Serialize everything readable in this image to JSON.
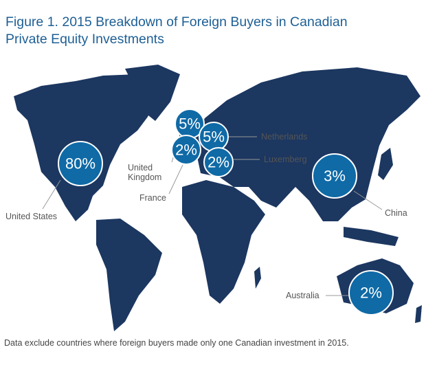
{
  "title": "Figure 1.  2015 Breakdown of Foreign Buyers in Canadian Private Equity Investments",
  "points": [
    {
      "name": "United States",
      "value": 80,
      "value_label": "80%"
    },
    {
      "name": "United Kingdom",
      "value": 5,
      "value_label": "5%"
    },
    {
      "name": "Netherlands",
      "value": 5,
      "value_label": "5%"
    },
    {
      "name": "France",
      "value": 2,
      "value_label": "2%"
    },
    {
      "name": "Luxemberg",
      "value": 2,
      "value_label": "2%"
    },
    {
      "name": "China",
      "value": 3,
      "value_label": "3%"
    },
    {
      "name": "Australia",
      "value": 2,
      "value_label": "2%"
    }
  ],
  "note": "Data exclude countries where foreign buyers made only one Canadian investment in 2015."
}
